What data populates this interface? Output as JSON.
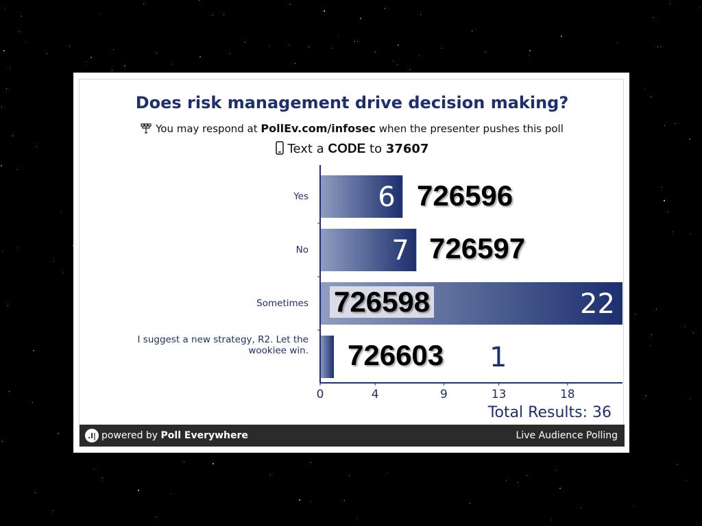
{
  "poll": {
    "title": "Does risk management drive decision making?",
    "respond_prefix": "You may respond at",
    "respond_url": "PollEv.com/infosec",
    "respond_suffix": "when the presenter pushes this poll",
    "text_prefix": "Text a",
    "text_code": "CODE",
    "text_to": "to",
    "text_number": "37607",
    "total_label": "Total Results: 36",
    "footer_left_prefix": "powered by",
    "footer_left_brand": "Poll Everywhere",
    "footer_right": "Live Audience Polling"
  },
  "codes": [
    "726596",
    "726597",
    "726598",
    "726603"
  ],
  "colors": {
    "bar_dark": "#1c2f6e",
    "bar_light": "#8f9dc0",
    "text_navy": "#1c2f6e",
    "footer": "#2b2b2b"
  },
  "icons": {
    "respond": "network-icon",
    "text": "phone-icon"
  },
  "chart_data": {
    "type": "bar",
    "orientation": "horizontal",
    "categories": [
      "Yes",
      "No",
      "Sometimes",
      "I suggest a new strategy, R2. Let the wookiee win."
    ],
    "values": [
      6,
      7,
      22,
      1
    ],
    "value_labels": [
      "6",
      "7",
      "22",
      "1"
    ],
    "xticks": [
      0,
      4,
      9,
      13,
      18
    ],
    "xlim": [
      0,
      22
    ],
    "title": "Does risk management drive decision making?",
    "grid": false
  }
}
